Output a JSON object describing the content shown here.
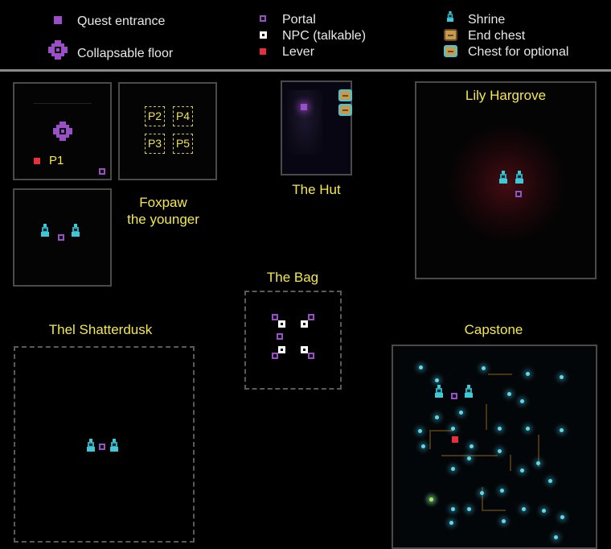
{
  "legend": {
    "quest_entrance": "Quest entrance",
    "collapsable_floor": "Collapsable floor",
    "portal": "Portal",
    "npc": "NPC (talkable)",
    "lever": "Lever",
    "shrine": "Shrine",
    "end_chest": "End chest",
    "optional_chest": "Chest for optional"
  },
  "regions": {
    "foxpaw": "Foxpaw\nthe younger",
    "p_boxes": [
      "P2",
      "P4",
      "P3",
      "P5"
    ],
    "p1": "P1",
    "hut": "The Hut",
    "lily": "Lily Hargrove",
    "bag": "The Bag",
    "thel": "Thel Shatterdusk",
    "capstone": "Capstone"
  },
  "colors": {
    "label_yellow": "#f5e84a",
    "portal_purple": "#9a4fc8",
    "lever_red": "#e8303a",
    "shrine_teal": "#3ec8d8",
    "chest_gold": "#c79a52",
    "frame_gray": "#4a4a4a"
  },
  "icons": {
    "quest_entrance": "purple-square-icon",
    "collapsable_floor": "purple-cross-icon",
    "portal": "hollow-purple-square-icon",
    "npc": "hollow-white-square-icon",
    "lever": "red-square-icon",
    "shrine": "teal-shrine-icon",
    "end_chest": "gold-chest-icon",
    "optional_chest": "teal-bordered-chest-icon"
  }
}
